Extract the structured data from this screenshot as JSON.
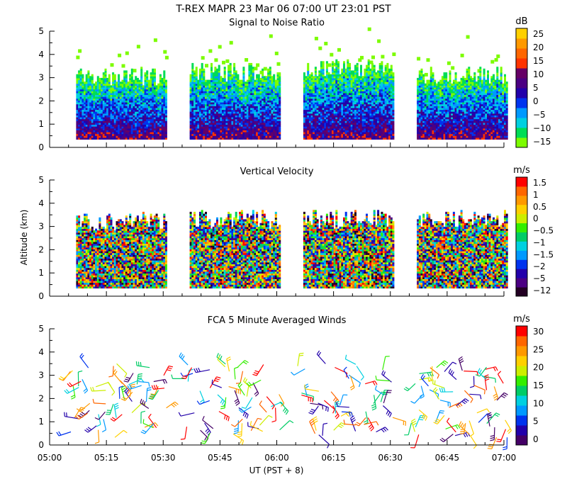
{
  "title": "T-REX   MAPR 23 Mar 06   07:00 UT   23:01   PST",
  "x_axis": {
    "label": "UT  (PST + 8)",
    "range_minutes": [
      300,
      420
    ],
    "tick_minutes": [
      300,
      315,
      330,
      345,
      360,
      375,
      390,
      405,
      420
    ],
    "tick_labels": [
      "05:00",
      "05:15",
      "05:30",
      "05:45",
      "06:00",
      "06:15",
      "06:30",
      "06:45",
      "07:00"
    ],
    "minor_step_minutes": 5
  },
  "y_axis": {
    "label": "Altitude (km)",
    "range": [
      0,
      5
    ],
    "ticks": [
      "0",
      "1",
      "2",
      "3",
      "4",
      "5"
    ]
  },
  "chart_data": [
    {
      "type": "heatmap",
      "title": "Signal to Noise Ratio",
      "xlabel": "",
      "ylabel": "",
      "xlim": [
        300,
        420
      ],
      "ylim": [
        0,
        5
      ],
      "data_segments_minutes": [
        [
          307,
          331
        ],
        [
          337,
          361
        ],
        [
          367,
          391
        ],
        [
          397,
          421
        ]
      ],
      "gate_bottom_km": 0.35,
      "top_km_estimate": [
        3.0,
        3.2,
        3.4,
        3.1
      ],
      "colorbar": {
        "unit": "dB",
        "labels": [
          "25",
          "20",
          "15",
          "10",
          "5",
          "0",
          "−5",
          "−10",
          "−15"
        ],
        "colors": [
          "#7cfc00",
          "#00dd55",
          "#00d0e0",
          "#0099ff",
          "#0033ee",
          "#2200aa",
          "#4b0082",
          "#660066",
          "#ff3300",
          "#ff6600",
          "#ff9900",
          "#ffd000"
        ]
      }
    },
    {
      "type": "heatmap",
      "title": "Vertical Velocity",
      "xlabel": "",
      "ylabel": "Altitude (km)",
      "xlim": [
        300,
        420
      ],
      "ylim": [
        0,
        5
      ],
      "data_segments_minutes": [
        [
          307,
          331
        ],
        [
          337,
          361
        ],
        [
          367,
          391
        ],
        [
          397,
          421
        ]
      ],
      "gate_bottom_km": 0.35,
      "top_km_estimate": [
        3.2,
        3.3,
        3.3,
        3.3
      ],
      "colorbar": {
        "unit": "m/s",
        "labels": [
          "1.5",
          "1",
          "0.5",
          "0",
          "−0.5",
          "−1",
          "−1.5",
          "−2",
          "−5",
          "−12"
        ],
        "colors": [
          "#220022",
          "#4b0082",
          "#2200aa",
          "#0033ee",
          "#0099ff",
          "#00d0e0",
          "#00cc66",
          "#33ee00",
          "#ccee00",
          "#ffd000",
          "#ff9900",
          "#ff6600",
          "#ff0000"
        ]
      }
    },
    {
      "type": "scatter",
      "title": "FCA 5 Minute Averaged Winds",
      "xlabel": "UT  (PST + 8)",
      "ylabel": "",
      "xlim": [
        300,
        420
      ],
      "ylim": [
        0,
        5
      ],
      "marker": "wind-barb",
      "data_segments_minutes": [
        [
          305,
          331
        ],
        [
          335,
          361
        ],
        [
          365,
          391
        ],
        [
          395,
          421
        ]
      ],
      "colorbar": {
        "unit": "m/s",
        "labels": [
          "30",
          "25",
          "20",
          "15",
          "10",
          "5",
          "0"
        ],
        "colors": [
          "#440066",
          "#2200aa",
          "#0033ee",
          "#0099ff",
          "#00d0e0",
          "#00cc66",
          "#33ee00",
          "#ccee00",
          "#ffd000",
          "#ff9900",
          "#ff6600",
          "#ff0000"
        ]
      }
    }
  ]
}
